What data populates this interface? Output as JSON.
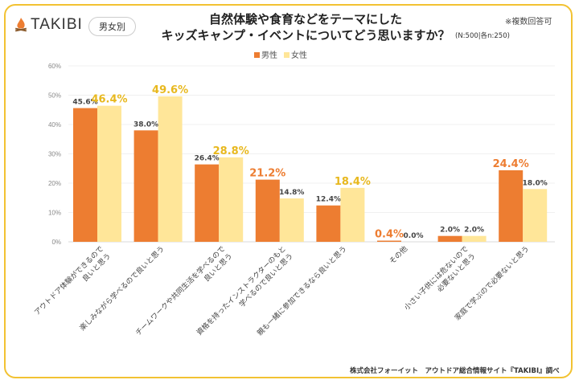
{
  "header": {
    "logo_text": "TAKIBI",
    "badge": "男女別",
    "title_line1": "自然体験や食育などをテーマにした",
    "title_line2": "キッズキャンプ・イベントについてどう思いますか？",
    "sample_note": "(N:500|各n:250)",
    "multiple_answers_note": "※複数回答可"
  },
  "footer": {
    "source": "株式会社フォーイット　アウトドア総合情報サイト『TAKIBI』調べ"
  },
  "colors": {
    "male": "#ED7D31",
    "female": "#FFE699",
    "highlight_female": "#E8B81E",
    "highlight_male": "#ED7D31",
    "frame": "#F2C232"
  },
  "chart_data": {
    "type": "bar",
    "ylim": [
      0,
      60
    ],
    "yticks": [
      "0%",
      "10%",
      "20%",
      "30%",
      "40%",
      "50%",
      "60%"
    ],
    "grid": true,
    "legend_position": "top",
    "categories": [
      [
        "アウトドア体験ができるので",
        "良いと思う"
      ],
      [
        "楽しみながら学べるので良いと思う"
      ],
      [
        "チームワークや共同生活を学べるので",
        "良いと思う"
      ],
      [
        "資格を持ったインストラクターのもと",
        "学べるので良いと思う"
      ],
      [
        "親も一緒に参加できるなら良いと思う"
      ],
      [
        "その他"
      ],
      [
        "小さい子供には危ないので",
        "必要ないと思う"
      ],
      [
        "家庭で学ぶので必要ないと思う"
      ]
    ],
    "series": [
      {
        "name": "男性",
        "values": [
          45.6,
          38.0,
          26.4,
          21.2,
          12.4,
          0.4,
          2.0,
          24.4
        ]
      },
      {
        "name": "女性",
        "values": [
          46.4,
          49.6,
          28.8,
          14.8,
          18.4,
          0.0,
          2.0,
          18.0
        ]
      }
    ]
  }
}
